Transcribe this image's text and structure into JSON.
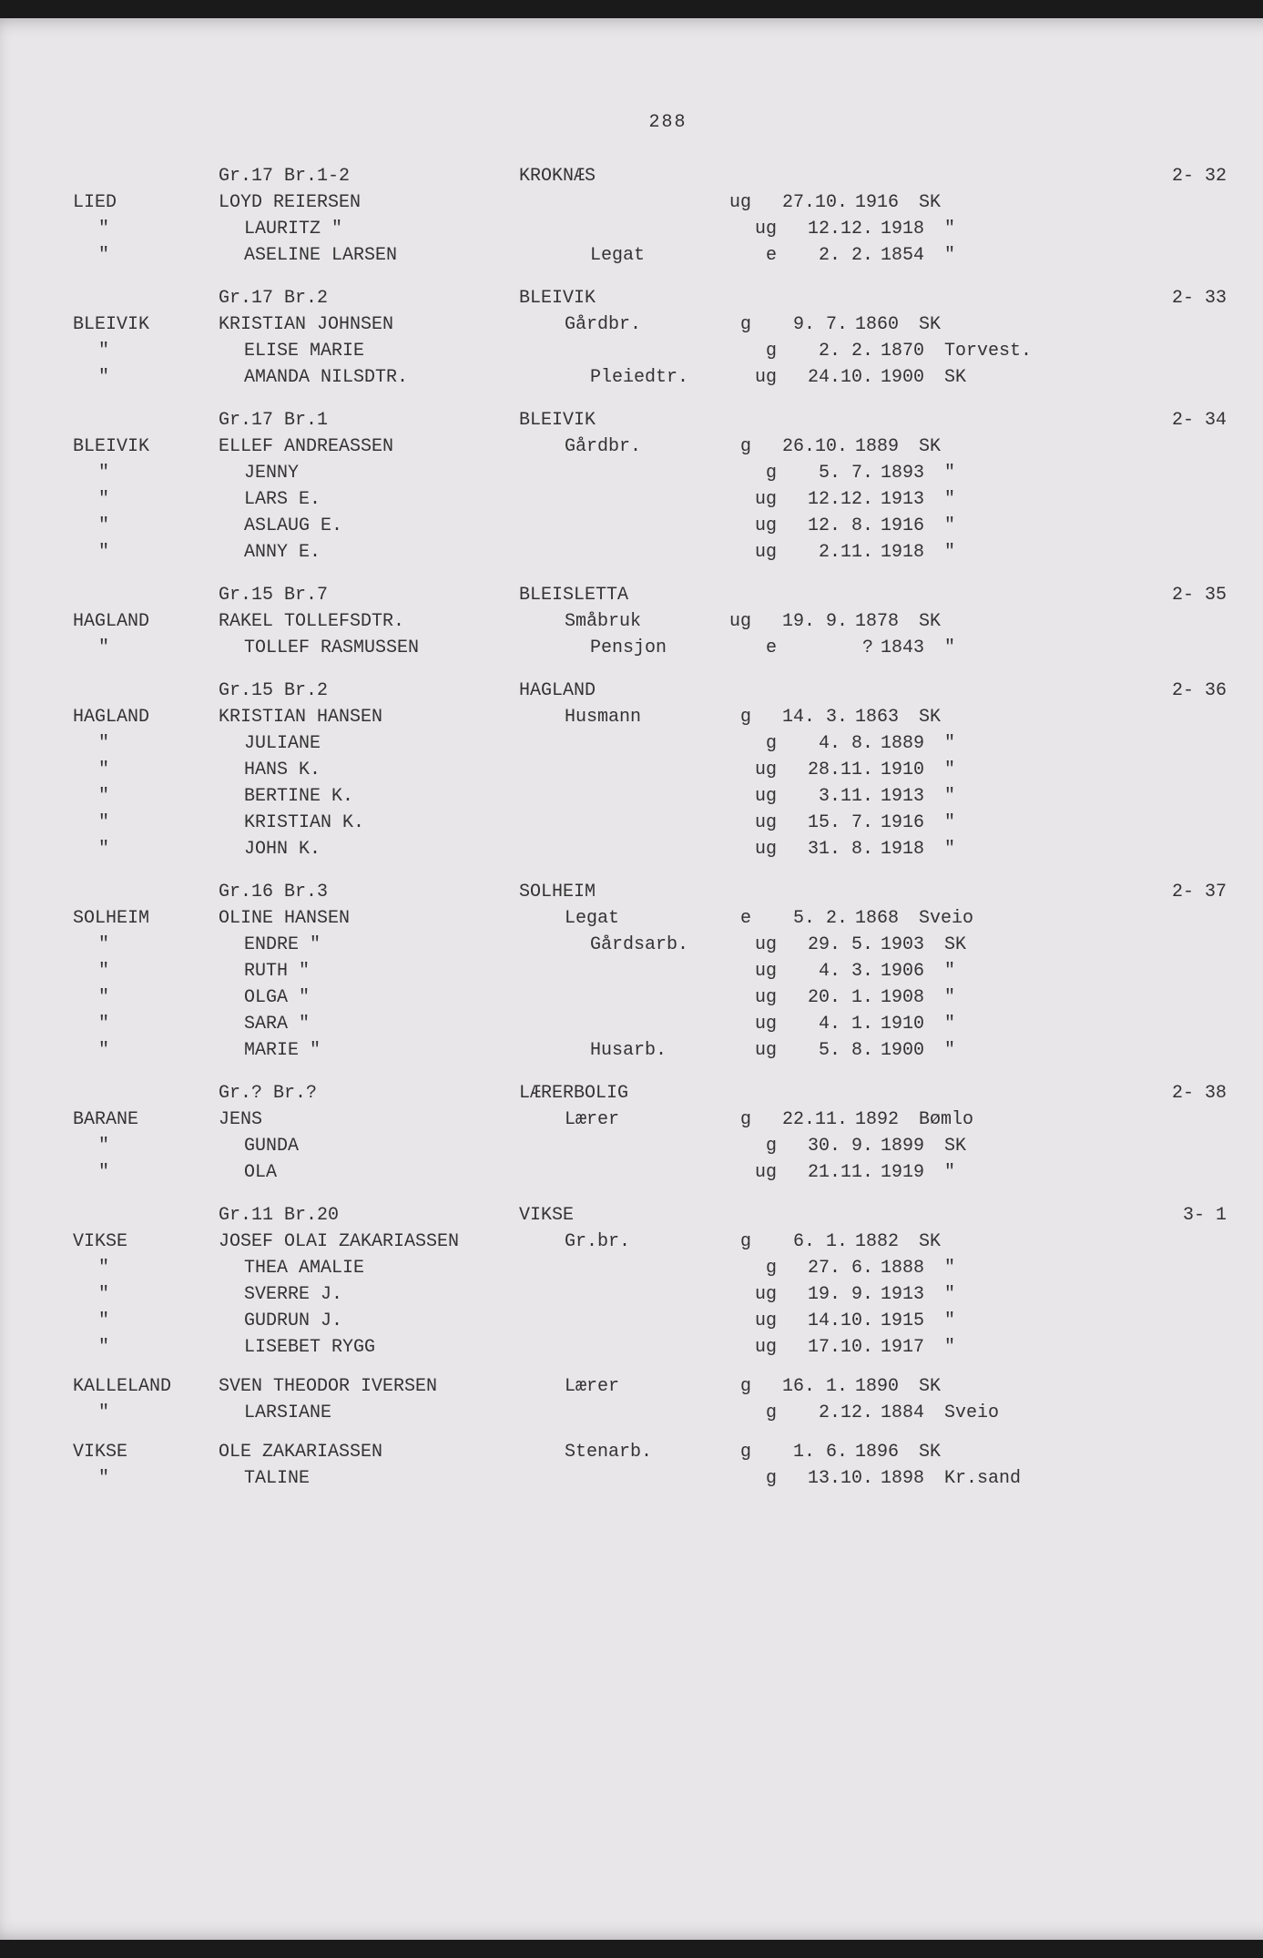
{
  "page_number": "288",
  "sections": [
    {
      "header": {
        "left": "Gr.17 Br.1-2",
        "mid": "KROKNÆS",
        "right": "2- 32"
      },
      "rows": [
        {
          "place": "LIED",
          "name": "LOYD REIERSEN",
          "role": "",
          "status": "ug",
          "date": "27.10.",
          "year": "1916",
          "origin": "SK"
        },
        {
          "place": "\"",
          "name": "LAURITZ   \"",
          "role": "",
          "status": "ug",
          "date": "12.12.",
          "year": "1918",
          "origin": "\""
        },
        {
          "place": "\"",
          "name": "ASELINE LARSEN",
          "role": "Legat",
          "status": "e",
          "date": "2. 2.",
          "year": "1854",
          "origin": "\""
        }
      ]
    },
    {
      "header": {
        "left": "Gr.17 Br.2",
        "mid": "BLEIVIK",
        "right": "2- 33"
      },
      "rows": [
        {
          "place": "BLEIVIK",
          "name": "KRISTIAN JOHNSEN",
          "role": "Gårdbr.",
          "status": "g",
          "date": "9. 7.",
          "year": "1860",
          "origin": "SK"
        },
        {
          "place": "\"",
          "name": "ELISE MARIE",
          "role": "",
          "status": "g",
          "date": "2. 2.",
          "year": "1870",
          "origin": "Torvest."
        },
        {
          "place": "\"",
          "name": "AMANDA NILSDTR.",
          "role": "Pleiedtr.",
          "status": "ug",
          "date": "24.10.",
          "year": "1900",
          "origin": "SK"
        }
      ]
    },
    {
      "header": {
        "left": "Gr.17 Br.1",
        "mid": "BLEIVIK",
        "right": "2- 34"
      },
      "rows": [
        {
          "place": "BLEIVIK",
          "name": "ELLEF ANDREASSEN",
          "role": "Gårdbr.",
          "status": "g",
          "date": "26.10.",
          "year": "1889",
          "origin": "SK"
        },
        {
          "place": "\"",
          "name": "JENNY",
          "role": "",
          "status": "g",
          "date": "5. 7.",
          "year": "1893",
          "origin": "\""
        },
        {
          "place": "\"",
          "name": "LARS E.",
          "role": "",
          "status": "ug",
          "date": "12.12.",
          "year": "1913",
          "origin": "\""
        },
        {
          "place": "\"",
          "name": "ASLAUG E.",
          "role": "",
          "status": "ug",
          "date": "12. 8.",
          "year": "1916",
          "origin": "\""
        },
        {
          "place": "\"",
          "name": "ANNY E.",
          "role": "",
          "status": "ug",
          "date": "2.11.",
          "year": "1918",
          "origin": "\""
        }
      ]
    },
    {
      "header": {
        "left": "Gr.15 Br.7",
        "mid": "BLEISLETTA",
        "right": "2- 35"
      },
      "rows": [
        {
          "place": "HAGLAND",
          "name": "RAKEL TOLLEFSDTR.",
          "role": "Småbruk",
          "status": "ug",
          "date": "19. 9.",
          "year": "1878",
          "origin": "SK"
        },
        {
          "place": "\"",
          "name": "TOLLEF RASMUSSEN",
          "role": "Pensjon",
          "status": "e",
          "date": "?",
          "year": "1843",
          "origin": "\""
        }
      ]
    },
    {
      "header": {
        "left": "Gr.15 Br.2",
        "mid": "HAGLAND",
        "right": "2- 36"
      },
      "rows": [
        {
          "place": "HAGLAND",
          "name": "KRISTIAN HANSEN",
          "role": "Husmann",
          "status": "g",
          "date": "14. 3.",
          "year": "1863",
          "origin": "SK"
        },
        {
          "place": "\"",
          "name": "JULIANE",
          "role": "",
          "status": "g",
          "date": "4. 8.",
          "year": "1889",
          "origin": "\""
        },
        {
          "place": "\"",
          "name": "HANS K.",
          "role": "",
          "status": "ug",
          "date": "28.11.",
          "year": "1910",
          "origin": "\""
        },
        {
          "place": "\"",
          "name": "BERTINE K.",
          "role": "",
          "status": "ug",
          "date": "3.11.",
          "year": "1913",
          "origin": "\""
        },
        {
          "place": "\"",
          "name": "KRISTIAN K.",
          "role": "",
          "status": "ug",
          "date": "15. 7.",
          "year": "1916",
          "origin": "\""
        },
        {
          "place": "\"",
          "name": "JOHN K.",
          "role": "",
          "status": "ug",
          "date": "31. 8.",
          "year": "1918",
          "origin": "\""
        }
      ]
    },
    {
      "header": {
        "left": "Gr.16 Br.3",
        "mid": "SOLHEIM",
        "right": "2- 37"
      },
      "rows": [
        {
          "place": "SOLHEIM",
          "name": "OLINE HANSEN",
          "role": "Legat",
          "status": "e",
          "date": "5. 2.",
          "year": "1868",
          "origin": "Sveio"
        },
        {
          "place": "\"",
          "name": "ENDRE    \"",
          "role": "Gårdsarb.",
          "status": "ug",
          "date": "29. 5.",
          "year": "1903",
          "origin": "SK"
        },
        {
          "place": "\"",
          "name": "RUTH     \"",
          "role": "",
          "status": "ug",
          "date": "4. 3.",
          "year": "1906",
          "origin": "\""
        },
        {
          "place": "\"",
          "name": "OLGA     \"",
          "role": "",
          "status": "ug",
          "date": "20. 1.",
          "year": "1908",
          "origin": "\""
        },
        {
          "place": "\"",
          "name": "SARA     \"",
          "role": "",
          "status": "ug",
          "date": "4. 1.",
          "year": "1910",
          "origin": "\""
        },
        {
          "place": "\"",
          "name": "MARIE    \"",
          "role": "Husarb.",
          "status": "ug",
          "date": "5. 8.",
          "year": "1900",
          "origin": "\""
        }
      ]
    },
    {
      "header": {
        "left": "Gr.? Br.?",
        "mid": "LÆRERBOLIG",
        "right": "2- 38"
      },
      "rows": [
        {
          "place": "BARANE",
          "name": "JENS",
          "role": "Lærer",
          "status": "g",
          "date": "22.11.",
          "year": "1892",
          "origin": "Bømlo"
        },
        {
          "place": "\"",
          "name": "GUNDA",
          "role": "",
          "status": "g",
          "date": "30. 9.",
          "year": "1899",
          "origin": "SK"
        },
        {
          "place": "\"",
          "name": "OLA",
          "role": "",
          "status": "ug",
          "date": "21.11.",
          "year": "1919",
          "origin": "\""
        }
      ]
    },
    {
      "header": {
        "left": "Gr.11 Br.20",
        "mid": "VIKSE",
        "right": "3-  1"
      },
      "rows": [
        {
          "place": "VIKSE",
          "name": "JOSEF OLAI ZAKARIASSEN",
          "role": "Gr.br.",
          "status": "g",
          "date": "6. 1.",
          "year": "1882",
          "origin": "SK"
        },
        {
          "place": "\"",
          "name": "THEA AMALIE",
          "role": "",
          "status": "g",
          "date": "27. 6.",
          "year": "1888",
          "origin": "\""
        },
        {
          "place": "\"",
          "name": "SVERRE J.",
          "role": "",
          "status": "ug",
          "date": "19. 9.",
          "year": "1913",
          "origin": "\""
        },
        {
          "place": "\"",
          "name": "GUDRUN J.",
          "role": "",
          "status": "ug",
          "date": "14.10.",
          "year": "1915",
          "origin": "\""
        },
        {
          "place": "\"",
          "name": "LISEBET RYGG",
          "role": "",
          "status": "ug",
          "date": "17.10.",
          "year": "1917",
          "origin": "\""
        },
        {
          "place": "KALLELAND",
          "name": "SVEN THEODOR IVERSEN",
          "role": "Lærer",
          "status": "g",
          "date": "16. 1.",
          "year": "1890",
          "origin": "SK",
          "spacer_before": true
        },
        {
          "place": "\"",
          "name": "LARSIANE",
          "role": "",
          "status": "g",
          "date": "2.12.",
          "year": "1884",
          "origin": "Sveio"
        },
        {
          "place": "VIKSE",
          "name": "OLE ZAKARIASSEN",
          "role": "Stenarb.",
          "status": "g",
          "date": "1. 6.",
          "year": "1896",
          "origin": "SK",
          "spacer_before": true
        },
        {
          "place": "\"",
          "name": "TALINE",
          "role": "",
          "status": "g",
          "date": "13.10.",
          "year": "1898",
          "origin": "Kr.sand"
        }
      ]
    }
  ]
}
